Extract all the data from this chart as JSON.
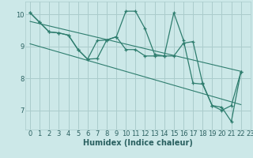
{
  "xlabel": "Humidex (Indice chaleur)",
  "bg_color": "#cce8e8",
  "grid_color": "#aacccc",
  "line_color": "#2e7d6e",
  "xlim": [
    -0.5,
    23
  ],
  "ylim": [
    6.4,
    10.4
  ],
  "yticks": [
    7,
    8,
    9,
    10
  ],
  "xticks": [
    0,
    1,
    2,
    3,
    4,
    5,
    6,
    7,
    8,
    9,
    10,
    11,
    12,
    13,
    14,
    15,
    16,
    17,
    18,
    19,
    20,
    21,
    22,
    23
  ],
  "series1_x": [
    0,
    1,
    2,
    3,
    4,
    5,
    6,
    7,
    8,
    9,
    10,
    11,
    12,
    13,
    14,
    15,
    16,
    17,
    18,
    19,
    20,
    21,
    22
  ],
  "series1_y": [
    10.05,
    9.75,
    9.45,
    9.42,
    9.35,
    8.9,
    8.6,
    9.18,
    9.2,
    9.3,
    10.1,
    10.1,
    9.55,
    8.75,
    8.7,
    10.05,
    9.2,
    7.85,
    7.82,
    7.15,
    7.1,
    6.65,
    8.2
  ],
  "series2_x": [
    0,
    1,
    2,
    3,
    4,
    5,
    6,
    7,
    8,
    9,
    10,
    11,
    12,
    13,
    14,
    15,
    16,
    17,
    18,
    19,
    20,
    21,
    22
  ],
  "series2_y": [
    10.05,
    9.75,
    9.45,
    9.42,
    9.35,
    8.9,
    8.6,
    8.62,
    9.2,
    9.3,
    8.9,
    8.9,
    8.7,
    8.7,
    8.7,
    8.7,
    9.1,
    9.15,
    7.85,
    7.15,
    7.0,
    7.15,
    8.2
  ],
  "trend1_x": [
    0,
    22
  ],
  "trend1_y": [
    9.78,
    8.22
  ],
  "trend2_x": [
    0,
    22
  ],
  "trend2_y": [
    9.08,
    7.18
  ],
  "xlabel_fontsize": 7,
  "tick_fontsize": 6,
  "xlabel_color": "#2a6060",
  "tick_color": "#2a6060"
}
